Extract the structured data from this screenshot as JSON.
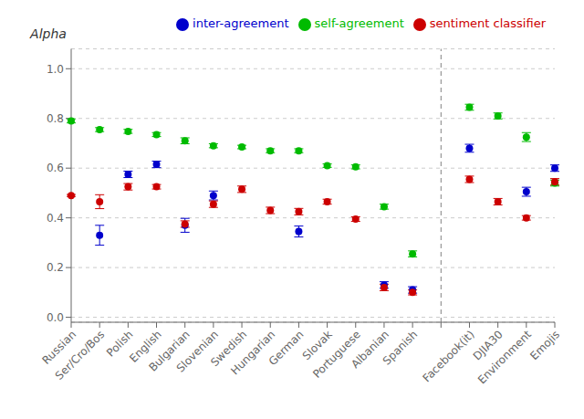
{
  "chart_data": {
    "type": "scatter",
    "ylabel": "Alpha",
    "categories": [
      "Russian",
      "Ser/Cro/Bos",
      "Polish",
      "English",
      "Bulgarian",
      "Slovenian",
      "Swedish",
      "Hungarian",
      "German",
      "Slovak",
      "Portuguese",
      "Albanian",
      "Spanish",
      null,
      "Facebook(it)",
      "DJIA30",
      "Environment",
      "Emojis"
    ],
    "series": [
      {
        "name": "self-agreement",
        "color": "#00bb00",
        "values": [
          0.79,
          0.755,
          0.748,
          0.735,
          0.71,
          0.69,
          0.685,
          0.67,
          0.67,
          0.61,
          0.605,
          0.445,
          0.255,
          null,
          0.845,
          0.81,
          0.725,
          0.54
        ],
        "errors": [
          0.008,
          0.008,
          0.008,
          0.008,
          0.012,
          0.008,
          0.007,
          0.008,
          0.008,
          0.007,
          0.008,
          0.01,
          0.012,
          null,
          0.012,
          0.012,
          0.018,
          0.012
        ]
      },
      {
        "name": "inter-agreement",
        "color": "#0000cc",
        "values": [
          null,
          0.33,
          0.575,
          0.615,
          0.37,
          0.49,
          null,
          null,
          0.345,
          null,
          null,
          0.13,
          0.11,
          null,
          0.68,
          null,
          0.505,
          0.6
        ],
        "errors": [
          null,
          0.04,
          0.013,
          0.013,
          0.028,
          0.018,
          null,
          null,
          0.022,
          null,
          null,
          0.013,
          0.013,
          null,
          0.016,
          null,
          0.018,
          0.013
        ]
      },
      {
        "name": "sentiment classifier",
        "color": "#cc0000",
        "values": [
          0.49,
          0.465,
          0.525,
          0.525,
          0.375,
          0.455,
          0.515,
          0.43,
          0.425,
          0.465,
          0.395,
          0.12,
          0.1,
          null,
          0.555,
          0.465,
          0.4,
          0.545
        ],
        "errors": [
          0.004,
          0.028,
          0.013,
          0.009,
          0.013,
          0.013,
          0.013,
          0.013,
          0.013,
          0.01,
          0.009,
          0.013,
          0.01,
          null,
          0.013,
          0.013,
          0.009,
          0.013
        ]
      }
    ],
    "ylim": [
      -0.02,
      1.08
    ],
    "yticks": [
      {
        "value": 0,
        "label": "0.0"
      },
      0.2,
      0.4,
      0.6,
      0.8,
      {
        "value": 1.0,
        "label": "1.0"
      }
    ],
    "grid": true,
    "legend": "upper right"
  }
}
